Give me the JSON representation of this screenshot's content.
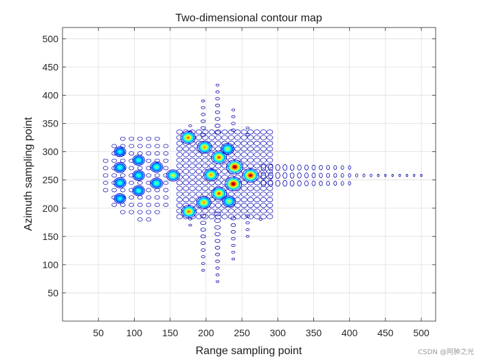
{
  "chart_data": {
    "type": "contour",
    "title": "Two-dimensional contour map",
    "xlabel": "Range sampling point",
    "ylabel": "Azimuth sampling point",
    "xlim": [
      0,
      520
    ],
    "ylim": [
      0,
      520
    ],
    "xticks": [
      50,
      100,
      150,
      200,
      250,
      300,
      350,
      400,
      450,
      500
    ],
    "yticks": [
      50,
      100,
      150,
      200,
      250,
      300,
      350,
      400,
      450,
      500
    ],
    "grid": true,
    "colormap": "jet",
    "hot_peaks": [
      {
        "x": 175,
        "y": 325,
        "amp": 0.75
      },
      {
        "x": 198,
        "y": 308,
        "amp": 0.7
      },
      {
        "x": 218,
        "y": 290,
        "amp": 0.8
      },
      {
        "x": 240,
        "y": 273,
        "amp": 1.0
      },
      {
        "x": 262,
        "y": 258,
        "amp": 0.95
      },
      {
        "x": 238,
        "y": 243,
        "amp": 1.0
      },
      {
        "x": 218,
        "y": 226,
        "amp": 0.8
      },
      {
        "x": 197,
        "y": 210,
        "amp": 0.7
      },
      {
        "x": 176,
        "y": 194,
        "amp": 0.75
      },
      {
        "x": 207,
        "y": 259,
        "amp": 0.7
      },
      {
        "x": 154,
        "y": 258,
        "amp": 0.55
      },
      {
        "x": 131,
        "y": 273,
        "amp": 0.4
      },
      {
        "x": 131,
        "y": 244,
        "amp": 0.4
      },
      {
        "x": 106,
        "y": 285,
        "amp": 0.35
      },
      {
        "x": 106,
        "y": 258,
        "amp": 0.35
      },
      {
        "x": 106,
        "y": 231,
        "amp": 0.35
      },
      {
        "x": 80,
        "y": 300,
        "amp": 0.3
      },
      {
        "x": 80,
        "y": 272,
        "amp": 0.35
      },
      {
        "x": 80,
        "y": 245,
        "amp": 0.35
      },
      {
        "x": 80,
        "y": 217,
        "amp": 0.3
      },
      {
        "x": 230,
        "y": 305,
        "amp": 0.5
      },
      {
        "x": 232,
        "y": 212,
        "amp": 0.5
      }
    ]
  },
  "watermark": "CSDN @阿肿之光"
}
